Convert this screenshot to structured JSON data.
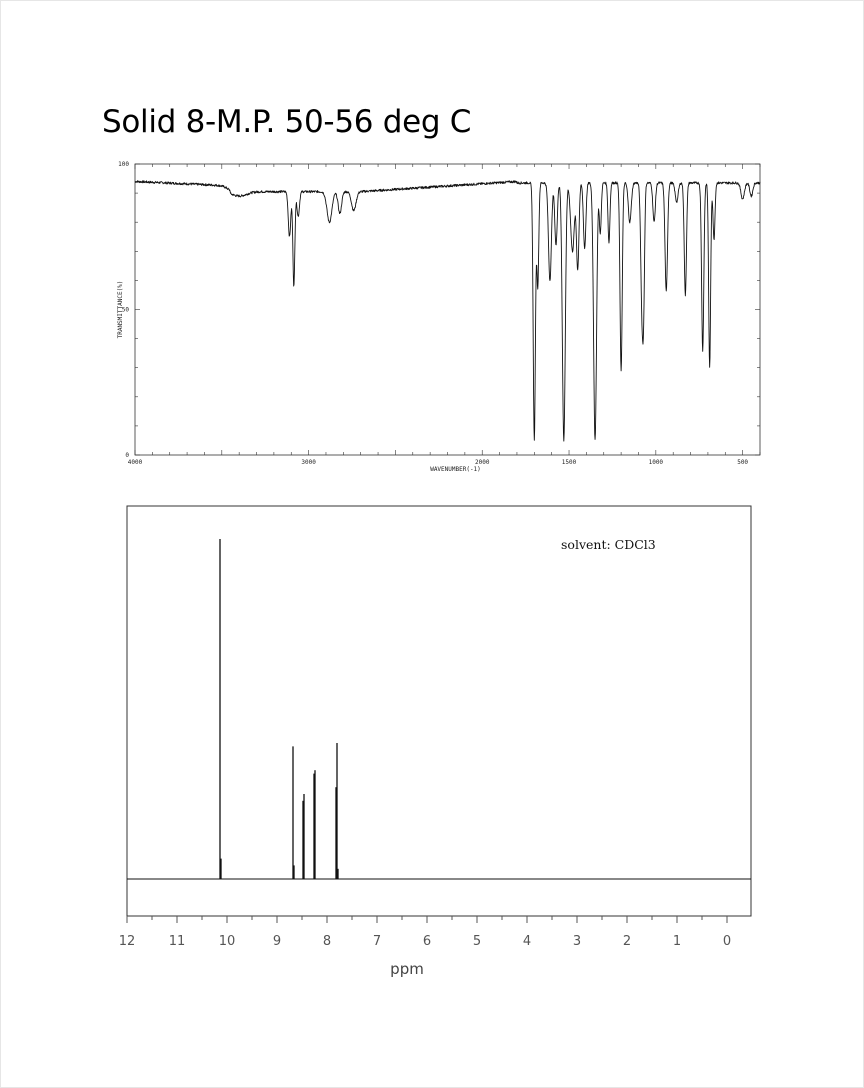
{
  "page": {
    "title": "Solid 8-M.P. 50-56 deg C"
  },
  "chart_data": [
    {
      "type": "line",
      "name": "ir-spectrum",
      "xlabel": "WAVENUMBER(-1)",
      "ylabel": "TRANSMITTANCE(%)",
      "xlim": [
        4000,
        400
      ],
      "ylim": [
        0,
        100
      ],
      "x_ticks": [
        {
          "value": 4000,
          "label": "4000"
        },
        {
          "value": 3000,
          "label": "3000"
        },
        {
          "value": 2000,
          "label": "2000"
        },
        {
          "value": 1500,
          "label": "1500"
        },
        {
          "value": 1000,
          "label": "1000"
        },
        {
          "value": 500,
          "label": "500"
        }
      ],
      "y_ticks": [
        {
          "value": 0,
          "label": "0"
        },
        {
          "value": 50,
          "label": "50"
        },
        {
          "value": 100,
          "label": "100"
        }
      ],
      "baseline": 94,
      "bands": [
        {
          "x": 3400,
          "y": 89,
          "w": 60
        },
        {
          "x": 3110,
          "y": 75,
          "w": 10
        },
        {
          "x": 3085,
          "y": 58,
          "w": 8
        },
        {
          "x": 3060,
          "y": 82,
          "w": 10
        },
        {
          "x": 2880,
          "y": 80,
          "w": 20
        },
        {
          "x": 2820,
          "y": 83,
          "w": 14
        },
        {
          "x": 2740,
          "y": 84,
          "w": 18
        },
        {
          "x": 1700,
          "y": 5,
          "w": 9
        },
        {
          "x": 1680,
          "y": 58,
          "w": 8
        },
        {
          "x": 1610,
          "y": 60,
          "w": 12
        },
        {
          "x": 1575,
          "y": 72,
          "w": 10
        },
        {
          "x": 1530,
          "y": 5,
          "w": 12
        },
        {
          "x": 1480,
          "y": 70,
          "w": 15
        },
        {
          "x": 1450,
          "y": 64,
          "w": 10
        },
        {
          "x": 1410,
          "y": 71,
          "w": 10
        },
        {
          "x": 1350,
          "y": 5,
          "w": 12
        },
        {
          "x": 1320,
          "y": 76,
          "w": 8
        },
        {
          "x": 1270,
          "y": 73,
          "w": 8
        },
        {
          "x": 1200,
          "y": 29,
          "w": 9
        },
        {
          "x": 1150,
          "y": 80,
          "w": 12
        },
        {
          "x": 1080,
          "y": 52,
          "w": 10
        },
        {
          "x": 1070,
          "y": 60,
          "w": 8
        },
        {
          "x": 1010,
          "y": 80,
          "w": 10
        },
        {
          "x": 940,
          "y": 56,
          "w": 10
        },
        {
          "x": 880,
          "y": 87,
          "w": 12
        },
        {
          "x": 830,
          "y": 55,
          "w": 9
        },
        {
          "x": 730,
          "y": 36,
          "w": 9
        },
        {
          "x": 690,
          "y": 30,
          "w": 8
        },
        {
          "x": 665,
          "y": 74,
          "w": 8
        },
        {
          "x": 500,
          "y": 88,
          "w": 14
        },
        {
          "x": 450,
          "y": 89,
          "w": 12
        }
      ]
    },
    {
      "type": "line",
      "name": "h-nmr-spectrum",
      "annotation": "solvent: CDCl3",
      "xlabel": "ppm",
      "xlim": [
        12,
        0
      ],
      "x_ticks": [
        {
          "value": 12,
          "label": "12"
        },
        {
          "value": 11,
          "label": "11"
        },
        {
          "value": 10,
          "label": "10"
        },
        {
          "value": 9,
          "label": "9"
        },
        {
          "value": 8,
          "label": "8"
        },
        {
          "value": 7,
          "label": "7"
        },
        {
          "value": 6,
          "label": "6"
        },
        {
          "value": 5,
          "label": "5"
        },
        {
          "value": 4,
          "label": "4"
        },
        {
          "value": 3,
          "label": "3"
        },
        {
          "value": 2,
          "label": "2"
        },
        {
          "value": 1,
          "label": "1"
        },
        {
          "value": 0,
          "label": "0"
        }
      ],
      "ylim": [
        0,
        100
      ],
      "peaks": [
        {
          "ppm": 10.14,
          "height": 100
        },
        {
          "ppm": 10.12,
          "height": 6
        },
        {
          "ppm": 8.68,
          "height": 39
        },
        {
          "ppm": 8.66,
          "height": 4
        },
        {
          "ppm": 8.48,
          "height": 23
        },
        {
          "ppm": 8.46,
          "height": 25
        },
        {
          "ppm": 8.26,
          "height": 31
        },
        {
          "ppm": 8.24,
          "height": 32
        },
        {
          "ppm": 7.82,
          "height": 27
        },
        {
          "ppm": 7.8,
          "height": 40
        },
        {
          "ppm": 7.78,
          "height": 3
        }
      ]
    }
  ]
}
